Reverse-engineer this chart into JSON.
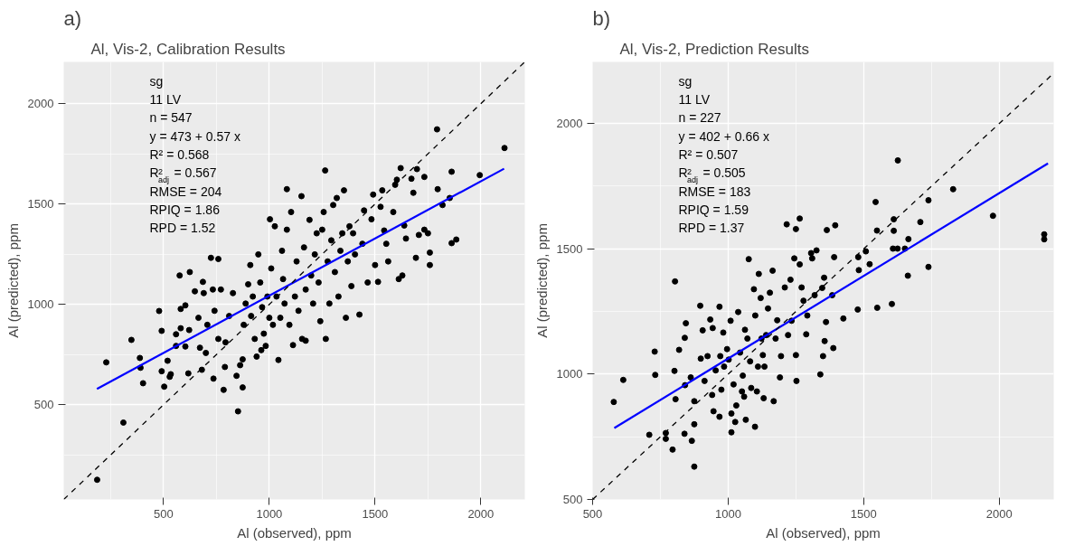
{
  "chart_data": [
    {
      "type": "scatter",
      "title": "a)",
      "subtitle": "Al, Vis-2, Calibration Results",
      "xlabel": "Al (observed), ppm",
      "ylabel": "Al (predicted), ppm",
      "xlim": [
        28,
        2208
      ],
      "ylim": [
        28,
        2208
      ],
      "xticks": [
        500,
        1000,
        1500,
        2000
      ],
      "yticks": [
        500,
        1000,
        1500,
        2000
      ],
      "grid": true,
      "annotations": [
        "sg",
        "11  LV",
        "n = 547",
        "y = 473 + 0.57 x",
        "R² = 0.568",
        "R$^{2}$$_{adj}$ = 0.567",
        "RMSE = 204",
        "RPIQ = 1.86",
        "RPD = 1.52"
      ],
      "series": [
        {
          "marker": "circle",
          "color": "#000000",
          "x": [
            186,
            310,
            229,
            348,
            388,
            391,
            403,
            479,
            491,
            491,
            503,
            519,
            529,
            534,
            559,
            559,
            576,
            581,
            581,
            603,
            603,
            621,
            624,
            617,
            648,
            665,
            672,
            681,
            686,
            690,
            700,
            707,
            724,
            736,
            759,
            733,
            741,
            759,
            784,
            790,
            771,
            793,
            810,
            828,
            845,
            852,
            862,
            874,
            874,
            879,
            888,
            900,
            910,
            914,
            922,
            931,
            940,
            948,
            957,
            962,
            966,
            974,
            983,
            991,
            1000,
            1003,
            1009,
            1017,
            1026,
            1034,
            1043,
            1052,
            1060,
            1065,
            1072,
            1083,
            1083,
            1095,
            1103,
            1112,
            1121,
            1129,
            1138,
            1152,
            1155,
            1164,
            1172,
            1172,
            1190,
            1198,
            1207,
            1215,
            1224,
            1233,
            1241,
            1250,
            1257,
            1264,
            1267,
            1276,
            1284,
            1293,
            1302,
            1310,
            1319,
            1327,
            1336,
            1345,
            1353,
            1362,
            1371,
            1379,
            1388,
            1396,
            1405,
            1426,
            1440,
            1448,
            1465,
            1483,
            1491,
            1500,
            1514,
            1526,
            1534,
            1543,
            1553,
            1562,
            1586,
            1595,
            1603,
            1612,
            1621,
            1629,
            1638,
            1646,
            1672,
            1681,
            1693,
            1698,
            1707,
            1733,
            1733,
            1750,
            1759,
            1759,
            1793,
            1796,
            1819,
            1853,
            1862,
            1862,
            1884,
            1995,
            2112
          ],
          "values": [
            126,
            411,
            711,
            823,
            733,
            684,
            607,
            967,
            868,
            667,
            590,
            719,
            639,
            652,
            793,
            851,
            1144,
            977,
            881,
            995,
            790,
            872,
            1161,
            656,
            1065,
            933,
            784,
            674,
            1112,
            1056,
            758,
            898,
            1232,
            630,
            1226,
            1074,
            968,
            828,
            574,
            688,
            1074,
            811,
            942,
            1056,
            644,
            467,
            697,
            586,
            726,
            898,
            1004,
            1100,
            1196,
            942,
            1039,
            828,
            740,
            1249,
            1109,
            772,
            986,
            854,
            793,
            1039,
            933,
            1424,
            1179,
            898,
            1389,
            1039,
            723,
            933,
            1267,
            1126,
            1004,
            1372,
            1574,
            898,
            1460,
            797,
            1039,
            1214,
            968,
            1539,
            828,
            1284,
            1074,
            819,
            1421,
            1144,
            1004,
            1249,
            1354,
            1109,
            916,
            1372,
            1460,
            1667,
            828,
            1214,
            1004,
            1319,
            1495,
            1161,
            1530,
            1039,
            1267,
            1354,
            1568,
            933,
            1214,
            1389,
            1091,
            1354,
            1249,
            949,
            1302,
            1468,
            1109,
            1424,
            1547,
            1196,
            1112,
            1486,
            1568,
            1368,
            1302,
            1214,
            1460,
            1596,
            1621,
            1126,
            1679,
            1144,
            1393,
            1328,
            1626,
            1556,
            1232,
            1674,
            1346,
            1635,
            1372,
            1354,
            1196,
            1258,
            1872,
            1574,
            1495,
            1530,
            1661,
            1305,
            1323,
            1644,
            1779
          ]
        },
        {
          "type": "line",
          "color": "#0000ff",
          "line_style": "solid",
          "x": [
            185,
            2110
          ],
          "values": [
            579,
            1676
          ]
        },
        {
          "type": "line",
          "color": "#000000",
          "line_style": "dashed",
          "x": [
            28,
            2208
          ],
          "values": [
            28,
            2208
          ]
        }
      ]
    },
    {
      "type": "scatter",
      "title": "b)",
      "subtitle": "Al, Vis-2, Prediction Results",
      "xlabel": "Al (observed), ppm",
      "ylabel": "Al (predicted), ppm",
      "xlim": [
        500,
        2201
      ],
      "ylim": [
        500,
        2246
      ],
      "xticks": [
        500,
        1000,
        1500,
        2000
      ],
      "yticks": [
        500,
        1000,
        1500,
        2000
      ],
      "grid": true,
      "annotations": [
        "sg",
        "11  LV",
        "n = 227",
        "y = 402 + 0.66 x",
        "R² = 0.507",
        "R$^{2}$$_{adj}$ = 0.505",
        "RMSE = 183",
        "RPIQ = 1.59",
        "RPD = 1.37"
      ],
      "series": [
        {
          "marker": "circle",
          "color": "#000000",
          "x": [
            578,
            613,
            709,
            729,
            731,
            770,
            770,
            795,
            802,
            804,
            806,
            819,
            839,
            841,
            844,
            840,
            862,
            866,
            875,
            875,
            875,
            897,
            899,
            906,
            913,
            924,
            934,
            941,
            943,
            946,
            954,
            968,
            968,
            971,
            975,
            982,
            985,
            996,
            1002,
            1009,
            1012,
            1012,
            1020,
            1026,
            1030,
            1037,
            1044,
            1051,
            1054,
            1059,
            1062,
            1065,
            1071,
            1076,
            1081,
            1085,
            1095,
            1099,
            1100,
            1106,
            1110,
            1113,
            1120,
            1123,
            1128,
            1131,
            1134,
            1140,
            1147,
            1154,
            1164,
            1168,
            1175,
            1181,
            1191,
            1195,
            1209,
            1216,
            1221,
            1230,
            1234,
            1244,
            1250,
            1250,
            1252,
            1264,
            1264,
            1271,
            1278,
            1288,
            1292,
            1306,
            1310,
            1319,
            1326,
            1340,
            1347,
            1350,
            1354,
            1356,
            1361,
            1364,
            1384,
            1388,
            1391,
            1395,
            1425,
            1478,
            1480,
            1482,
            1508,
            1522,
            1544,
            1549,
            1550,
            1604,
            1608,
            1611,
            1611,
            1625,
            1626,
            1652,
            1665,
            1663,
            1709,
            1739,
            1739,
            1830,
            1977,
            2166,
            2166
          ],
          "values": [
            889,
            977,
            758,
            1090,
            997,
            765,
            742,
            699,
            1013,
            1370,
            900,
            1097,
            762,
            956,
            1203,
            1145,
            987,
            734,
            631,
            892,
            800,
            1273,
            1062,
            1175,
            973,
            1072,
            1218,
            917,
            1184,
            852,
            1015,
            830,
            1269,
            1072,
            938,
            1166,
            1030,
            1100,
            1058,
            1213,
            843,
            768,
            959,
            809,
            875,
            1248,
            1086,
            931,
            994,
            910,
            1177,
            818,
            1142,
            1459,
            1051,
            945,
            1339,
            790,
            1234,
            931,
            1030,
            1400,
            1304,
            1142,
            1076,
            904,
            1030,
            1156,
            1262,
            1325,
            1413,
            892,
            1142,
            1215,
            987,
            1072,
            1346,
            1598,
            1156,
            1377,
            1213,
            1462,
            1579,
            1076,
            973,
            1621,
            1438,
            1346,
            1293,
            1159,
            1234,
            1483,
            1462,
            1315,
            1494,
            999,
            1344,
            1072,
            1385,
            1132,
            1208,
            1575,
            1315,
            1104,
            1467,
            1594,
            1222,
            1258,
            1467,
            1415,
            1490,
            1439,
            1687,
            1573,
            1265,
            1280,
            1501,
            1618,
            1572,
            1501,
            1853,
            1501,
            1539,
            1393,
            1607,
            1428,
            1694,
            1738,
            1632,
            1558,
            1538
          ]
        },
        {
          "type": "line",
          "color": "#0000ff",
          "line_style": "solid",
          "x": [
            580,
            2180
          ],
          "values": [
            785,
            1841
          ]
        },
        {
          "type": "line",
          "color": "#000000",
          "line_style": "dashed",
          "x": [
            500,
            2201
          ],
          "values": [
            500,
            2201
          ]
        }
      ]
    }
  ]
}
